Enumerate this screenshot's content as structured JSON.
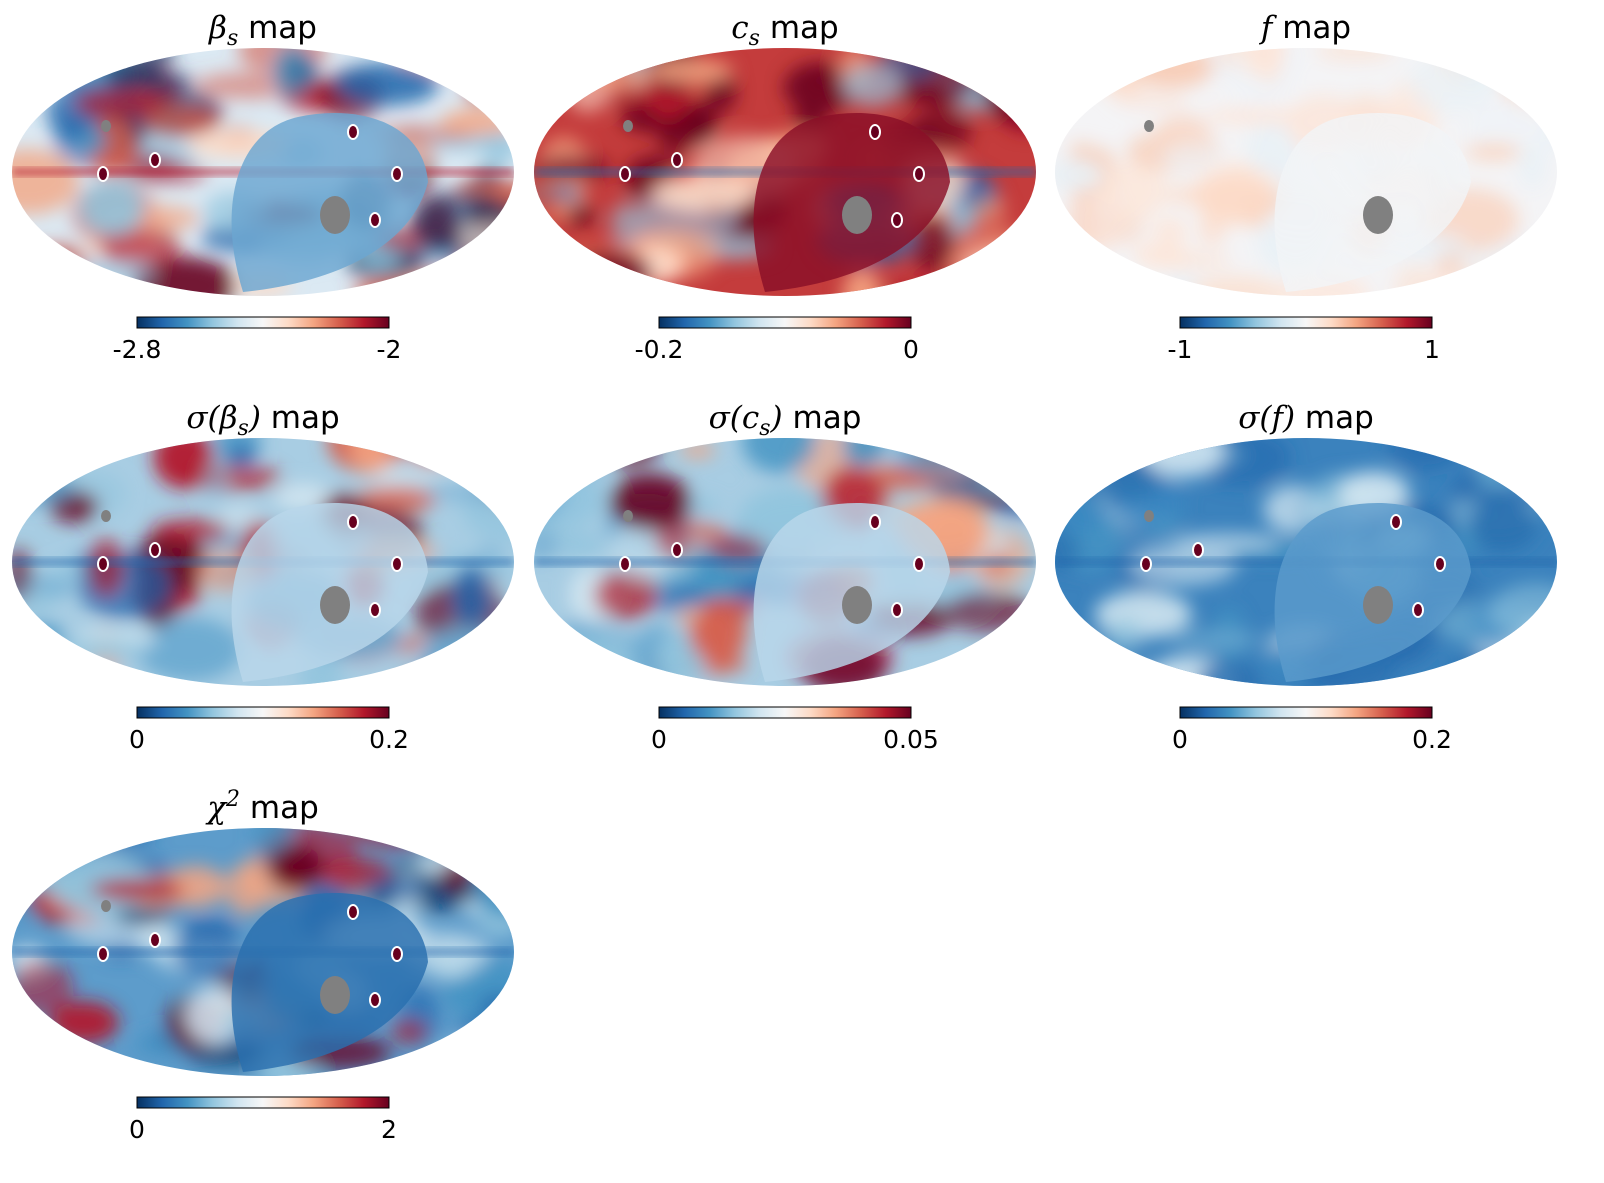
{
  "figure": {
    "description_colormap": "RdBu_r",
    "colors": {
      "low": "#053061",
      "mid": "#f7f7f7",
      "high": "#67001f",
      "mask": "#808080"
    }
  },
  "chart_data": [
    {
      "type": "heatmap",
      "id": "beta_s",
      "title": {
        "sym": "β",
        "sub": "s",
        "text": "map",
        "pre": "",
        "close": ""
      },
      "colorbar": {
        "min_label": "-2.8",
        "max_label": "-2",
        "vmin": -2.8,
        "vmax": -2
      },
      "tone": "mixed"
    },
    {
      "type": "heatmap",
      "id": "c_s",
      "title": {
        "sym": "c",
        "sub": "s",
        "text": "map",
        "pre": "",
        "close": ""
      },
      "colorbar": {
        "min_label": "-0.2",
        "max_label": "0",
        "vmin": -0.2,
        "vmax": 0
      },
      "tone": "red"
    },
    {
      "type": "heatmap",
      "id": "f",
      "title": {
        "sym": "f",
        "sub": "",
        "text": "map",
        "pre": "",
        "close": ""
      },
      "colorbar": {
        "min_label": "-1",
        "max_label": "1",
        "vmin": -1,
        "vmax": 1
      },
      "tone": "pale"
    },
    {
      "type": "heatmap",
      "id": "sigma_beta_s",
      "title": {
        "sym": "β",
        "sub": "s",
        "text": "map",
        "pre": "σ(",
        "close": ")"
      },
      "colorbar": {
        "min_label": "0",
        "max_label": "0.2",
        "vmin": 0,
        "vmax": 0.2
      },
      "tone": "blue-mixed"
    },
    {
      "type": "heatmap",
      "id": "sigma_c_s",
      "title": {
        "sym": "c",
        "sub": "s",
        "text": "map",
        "pre": "σ(",
        "close": ")"
      },
      "colorbar": {
        "min_label": "0",
        "max_label": "0.05",
        "vmin": 0,
        "vmax": 0.05
      },
      "tone": "blue-mixed"
    },
    {
      "type": "heatmap",
      "id": "sigma_f",
      "title": {
        "sym": "f",
        "sub": "",
        "text": "map",
        "pre": "σ(",
        "close": ")"
      },
      "colorbar": {
        "min_label": "0",
        "max_label": "0.2",
        "vmin": 0,
        "vmax": 0.2
      },
      "tone": "blue"
    },
    {
      "type": "heatmap",
      "id": "chi2",
      "title": {
        "sym": "χ",
        "sub": "",
        "sup": "2",
        "text": "map",
        "pre": "",
        "close": ""
      },
      "colorbar": {
        "min_label": "0",
        "max_label": "2",
        "vmin": 0,
        "vmax": 2
      },
      "tone": "blue-red"
    }
  ]
}
